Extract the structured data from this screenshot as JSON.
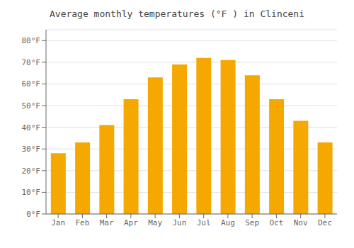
{
  "chart_data": {
    "type": "bar",
    "title": "Average monthly temperatures (°F ) in Clinceni",
    "categories": [
      "Jan",
      "Feb",
      "Mar",
      "Apr",
      "May",
      "Jun",
      "Jul",
      "Aug",
      "Sep",
      "Oct",
      "Nov",
      "Dec"
    ],
    "values": [
      28,
      33,
      41,
      53,
      63,
      69,
      72,
      71,
      64,
      53,
      43,
      33
    ],
    "color": "#F5A800",
    "ylim": [
      0,
      85
    ],
    "yticks": [
      {
        "value": 0,
        "label": "0°F"
      },
      {
        "value": 10,
        "label": "10°F"
      },
      {
        "value": 20,
        "label": "20°F"
      },
      {
        "value": 30,
        "label": "30°F"
      },
      {
        "value": 40,
        "label": "40°F"
      },
      {
        "value": 50,
        "label": "50°F"
      },
      {
        "value": 60,
        "label": "60°F"
      },
      {
        "value": 70,
        "label": "70°F"
      },
      {
        "value": 80,
        "label": "80°F"
      }
    ],
    "grid": true
  }
}
